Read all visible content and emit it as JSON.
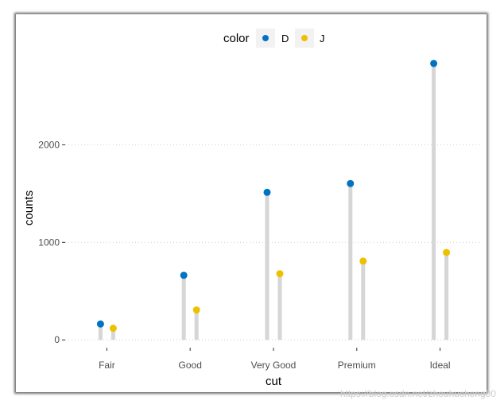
{
  "chart_data": {
    "type": "lollipop",
    "categories": [
      "Fair",
      "Good",
      "Very Good",
      "Premium",
      "Ideal"
    ],
    "series": [
      {
        "name": "D",
        "values": [
          163,
          662,
          1513,
          1603,
          2834
        ]
      },
      {
        "name": "J",
        "values": [
          119,
          307,
          678,
          808,
          896
        ]
      }
    ],
    "xlabel": "cut",
    "ylabel": "counts",
    "ylim": [
      -80,
      2980
    ],
    "yticks": [
      0,
      1000,
      2000
    ],
    "grid": "horizontal dotted",
    "legend": {
      "title": "color",
      "position": "top"
    },
    "colors": {
      "D": "#0073C2",
      "J": "#EFC000",
      "stem": "#D6D6D6",
      "grid": "#CFCFCF",
      "axis_text": "#4D4D4D"
    }
  },
  "watermark": "https://blog.csdn.net/zhouhucheng00"
}
